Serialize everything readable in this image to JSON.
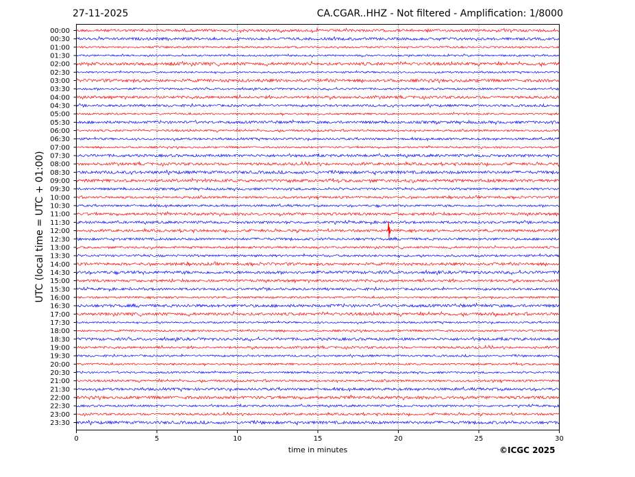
{
  "header": {
    "date": "27-11-2025",
    "station_info": "CA.CGAR..HHZ - Not filtered - Amplification: 1/8000"
  },
  "footer": {
    "copyright": "©ICGC 2025"
  },
  "chart_data": {
    "type": "line",
    "title": "CA.CGAR..HHZ - Not filtered - Amplification: 1/8000",
    "xlabel": "time in minutes",
    "ylabel": "UTC (local time = UTC + 01:00)",
    "xlim": [
      0,
      30
    ],
    "x_ticks": [
      0,
      5,
      10,
      15,
      20,
      25,
      30
    ],
    "grid": "vertical dotted lines at x ticks",
    "row_labels": [
      "00:00",
      "00:30",
      "01:00",
      "01:30",
      "02:00",
      "02:30",
      "03:00",
      "03:30",
      "04:00",
      "04:30",
      "05:00",
      "05:30",
      "06:00",
      "06:30",
      "07:00",
      "07:30",
      "08:00",
      "08:30",
      "09:00",
      "09:30",
      "10:00",
      "10:30",
      "11:00",
      "11:30",
      "12:00",
      "12:30",
      "13:00",
      "13:30",
      "14:00",
      "14:30",
      "15:00",
      "15:30",
      "16:00",
      "16:30",
      "17:00",
      "17:30",
      "18:00",
      "18:30",
      "19:00",
      "19:30",
      "20:00",
      "20:30",
      "21:00",
      "21:30",
      "22:00",
      "22:30",
      "23:00",
      "23:30"
    ],
    "trace_colors": [
      "#ff0000",
      "#0000ff"
    ],
    "events": [
      {
        "row": "12:00",
        "x_minutes": 19.4,
        "note_color": "#ff0000"
      }
    ]
  }
}
